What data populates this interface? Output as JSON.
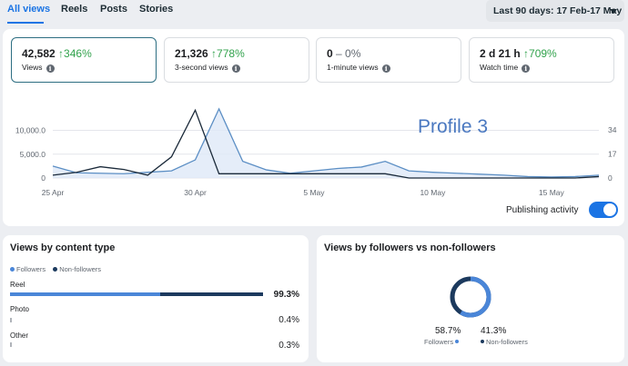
{
  "tabs": [
    {
      "label": "All views",
      "active": true
    },
    {
      "label": "Reels",
      "active": false
    },
    {
      "label": "Posts",
      "active": false
    },
    {
      "label": "Stories",
      "active": false
    }
  ],
  "date_range": {
    "label": "Last 90 days: 17 Feb-17 May"
  },
  "metrics": [
    {
      "value": "42,582",
      "change": "↑346%",
      "label": "Views",
      "selected": true
    },
    {
      "value": "21,326",
      "change": "↑778%",
      "label": "3-second views",
      "selected": false
    },
    {
      "value": "0",
      "change": "– 0%",
      "label": "1-minute views",
      "selected": false
    },
    {
      "value": "2 d 21 h",
      "change": "↑709%",
      "label": "Watch time",
      "selected": false
    }
  ],
  "publishing_activity": {
    "label": "Publishing activity",
    "enabled": true
  },
  "colors": {
    "accent": "#1b74e4",
    "views_line": "#5b8ec4",
    "views_fill": "#dfe9f7",
    "activity_line": "#1b2a3a",
    "followers": "#4a86d8",
    "non_followers": "#1c3a5e",
    "up": "#31a24c"
  },
  "chart_data": {
    "type": "line",
    "title": "",
    "watermark": "Profile 3",
    "x_ticks": [
      "25 Apr",
      "30 Apr",
      "5 May",
      "10 May",
      "15 May"
    ],
    "y_left_ticks": [
      "10,000.0",
      "5,000.0",
      "0"
    ],
    "y_right_ticks": [
      "34",
      "17",
      "0"
    ],
    "ylim_left": [
      0,
      16000
    ],
    "ylim_right": [
      0,
      54
    ],
    "x": [
      0,
      1,
      2,
      3,
      4,
      5,
      6,
      7,
      8,
      9,
      10,
      11,
      12,
      13,
      14,
      15,
      16,
      17,
      18,
      19,
      20,
      21,
      22,
      23
    ],
    "series": [
      {
        "values": [
          2500,
          1100,
          1000,
          900,
          1200,
          1500,
          3800,
          14500,
          3500,
          1700,
          1000,
          1500,
          2000,
          2300,
          3500,
          1500,
          1200,
          1000,
          800,
          600,
          300,
          200,
          300,
          600
        ]
      },
      {
        "values": [
          2,
          4,
          8,
          6,
          2,
          15,
          48,
          3,
          3,
          3,
          3,
          3,
          3,
          3,
          3,
          0,
          0,
          0,
          0,
          0,
          0,
          0,
          0,
          1
        ]
      }
    ]
  },
  "content_type": {
    "title": "Views by content type",
    "legend": [
      "Followers",
      "Non-followers"
    ],
    "rows": [
      {
        "label": "Reel",
        "pct": "99.3%",
        "followers": 59.0,
        "non_followers": 40.3
      },
      {
        "label": "Photo",
        "pct": "0.4%",
        "followers": 0.4,
        "non_followers": 0
      },
      {
        "label": "Other",
        "pct": "0.3%",
        "followers": 0.3,
        "non_followers": 0
      }
    ]
  },
  "followers_split": {
    "title": "Views by followers vs non-followers",
    "followers_pct": "58.7%",
    "followers_label": "Followers",
    "non_followers_pct": "41.3%",
    "non_followers_label": "Non-followers",
    "followers_value": 58.7
  }
}
